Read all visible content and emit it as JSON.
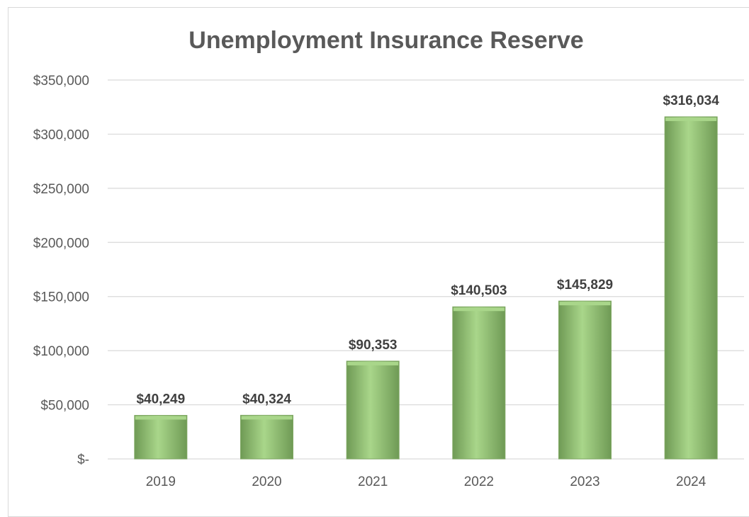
{
  "chart_data": {
    "type": "bar",
    "title": "Unemployment Insurance Reserve",
    "xlabel": "",
    "ylabel": "",
    "categories": [
      "2019",
      "2020",
      "2021",
      "2022",
      "2023",
      "2024"
    ],
    "values": [
      40249,
      40324,
      90353,
      140503,
      145829,
      316034
    ],
    "data_labels": [
      "$40,249",
      "$40,324",
      "$90,353",
      "$140,503",
      "$145,829",
      "$316,034"
    ],
    "ylim": [
      0,
      350000
    ],
    "y_ticks": [
      0,
      50000,
      100000,
      150000,
      200000,
      250000,
      300000,
      350000
    ],
    "y_tick_labels": [
      "$-",
      "$50,000",
      "$100,000",
      "$150,000",
      "$200,000",
      "$250,000",
      "$300,000",
      "$350,000"
    ],
    "grid": true,
    "legend": "none",
    "bar_color": "#8fbf6e",
    "bar_color_light": "#a9d68a",
    "bar_color_dark": "#6f9a55"
  }
}
